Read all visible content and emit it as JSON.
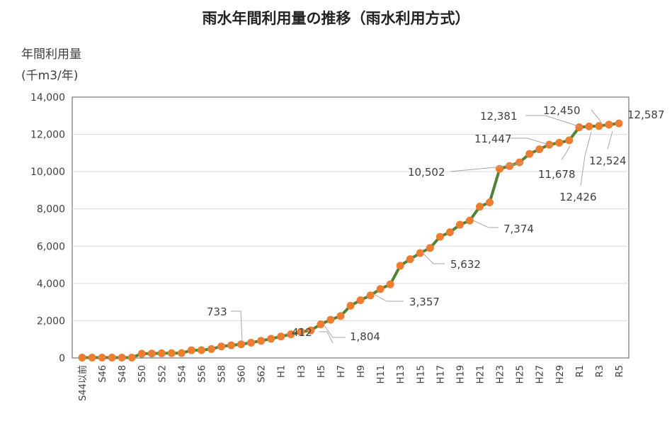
{
  "chart_data": {
    "type": "line",
    "title": "雨水年間利用量の推移（雨水利用方式）",
    "ylabel_line1": "年間利用量",
    "ylabel_line2": "(千m3/年)",
    "xlabel": "",
    "ylim": [
      0,
      14000
    ],
    "yticks": [
      "0",
      "2,000",
      "4,000",
      "6,000",
      "8,000",
      "10,000",
      "12,000",
      "14,000"
    ],
    "grid": true,
    "colors": {
      "line": "#548235",
      "marker": "#ED7D31",
      "grid": "#d9d9d9",
      "label_line": "#a6a6a6"
    },
    "categories": [
      "S44以前",
      "S45",
      "S46",
      "S47",
      "S48",
      "S49",
      "S50",
      "S51",
      "S52",
      "S53",
      "S54",
      "S55",
      "S56",
      "S57",
      "S58",
      "S59",
      "S60",
      "S61",
      "S62",
      "S63",
      "H1",
      "H2",
      "H3",
      "H4",
      "H5",
      "H6",
      "H7",
      "H8",
      "H9",
      "H10",
      "H11",
      "H12",
      "H13",
      "H14",
      "H15",
      "H16",
      "H17",
      "H18",
      "H19",
      "H20",
      "H21",
      "H22",
      "H23",
      "H24",
      "H25",
      "H26",
      "H27",
      "H28",
      "H29",
      "H30",
      "R1",
      "R2",
      "R3",
      "R4",
      "R5"
    ],
    "tick_labels": [
      "S44以前",
      "",
      "S46",
      "",
      "S48",
      "",
      "S50",
      "",
      "S52",
      "",
      "S54",
      "",
      "S56",
      "",
      "S58",
      "",
      "S60",
      "",
      "S62",
      "",
      "H1",
      "",
      "H3",
      "",
      "H5",
      "",
      "H7",
      "",
      "H9",
      "",
      "H11",
      "",
      "H13",
      "",
      "H15",
      "",
      "H17",
      "",
      "H19",
      "",
      "H21",
      "",
      "H23",
      "",
      "H25",
      "",
      "H27",
      "",
      "H29",
      "",
      "R1",
      "",
      "R3",
      "",
      "R5"
    ],
    "values": [
      20,
      20,
      20,
      20,
      20,
      20,
      230,
      240,
      250,
      255,
      260,
      412,
      420,
      480,
      620,
      680,
      733,
      820,
      920,
      1030,
      1150,
      1270,
      1400,
      1480,
      1804,
      2050,
      2250,
      2800,
      3100,
      3357,
      3700,
      3950,
      4950,
      5300,
      5632,
      5900,
      6500,
      6750,
      7150,
      7374,
      8120,
      8350,
      10150,
      10300,
      10502,
      10950,
      11200,
      11447,
      11550,
      11678,
      12381,
      12426,
      12450,
      12524,
      12587
    ],
    "annotations": [
      {
        "index": 11,
        "label": "412"
      },
      {
        "index": 16,
        "label": "733"
      },
      {
        "index": 24,
        "label": "1,804"
      },
      {
        "index": 29,
        "label": "3,357"
      },
      {
        "index": 34,
        "label": "5,632"
      },
      {
        "index": 39,
        "label": "7,374"
      },
      {
        "index": 44,
        "label": "10,502"
      },
      {
        "index": 47,
        "label": "11,447"
      },
      {
        "index": 49,
        "label": "11,678"
      },
      {
        "index": 50,
        "label": "12,381"
      },
      {
        "index": 51,
        "label": "12,426"
      },
      {
        "index": 52,
        "label": "12,450"
      },
      {
        "index": 53,
        "label": "12,524"
      },
      {
        "index": 54,
        "label": "12,587"
      }
    ]
  }
}
